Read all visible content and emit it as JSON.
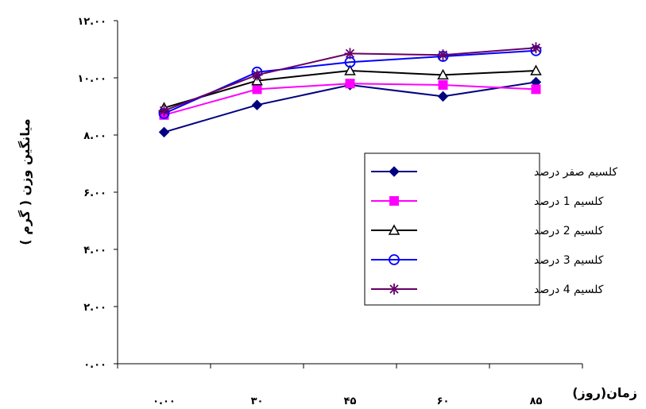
{
  "chart_data": {
    "type": "line",
    "title": "",
    "xlabel": "زمان(روز)",
    "ylabel": "میانگین وزن ( گرم )",
    "categories": [
      "۰.۰۰",
      "۳۰",
      "۴۵",
      "۶۰",
      "۸۵"
    ],
    "ylim": [
      0,
      12
    ],
    "y_ticks": [
      0,
      2,
      4,
      6,
      8,
      10,
      12
    ],
    "y_tick_labels": [
      "۰.۰۰",
      "۲.۰۰",
      "۴.۰۰",
      "۶.۰۰",
      "۸.۰۰",
      "۱۰.۰۰",
      "۱۲.۰۰"
    ],
    "grid": false,
    "legend_position": "right",
    "series": [
      {
        "name": "کلسیم صفر درصد",
        "color": "#000080",
        "marker": "diamond",
        "values": [
          8.1,
          9.05,
          9.75,
          9.35,
          9.85
        ]
      },
      {
        "name": "کلسیم 1 درصد",
        "color": "#ff00ff",
        "marker": "square",
        "values": [
          8.7,
          9.6,
          9.8,
          9.75,
          9.6
        ]
      },
      {
        "name": "کلسیم 2 درصد",
        "color": "#000000",
        "marker": "triangle",
        "values": [
          8.95,
          9.9,
          10.25,
          10.1,
          10.25
        ]
      },
      {
        "name": "کلسیم 3 درصد",
        "color": "#0000ff",
        "marker": "circle",
        "values": [
          8.75,
          10.2,
          10.55,
          10.75,
          10.95
        ]
      },
      {
        "name": "کلسیم 4 درصد",
        "color": "#660066",
        "marker": "star",
        "values": [
          8.85,
          10.1,
          10.85,
          10.8,
          11.05
        ]
      }
    ]
  }
}
